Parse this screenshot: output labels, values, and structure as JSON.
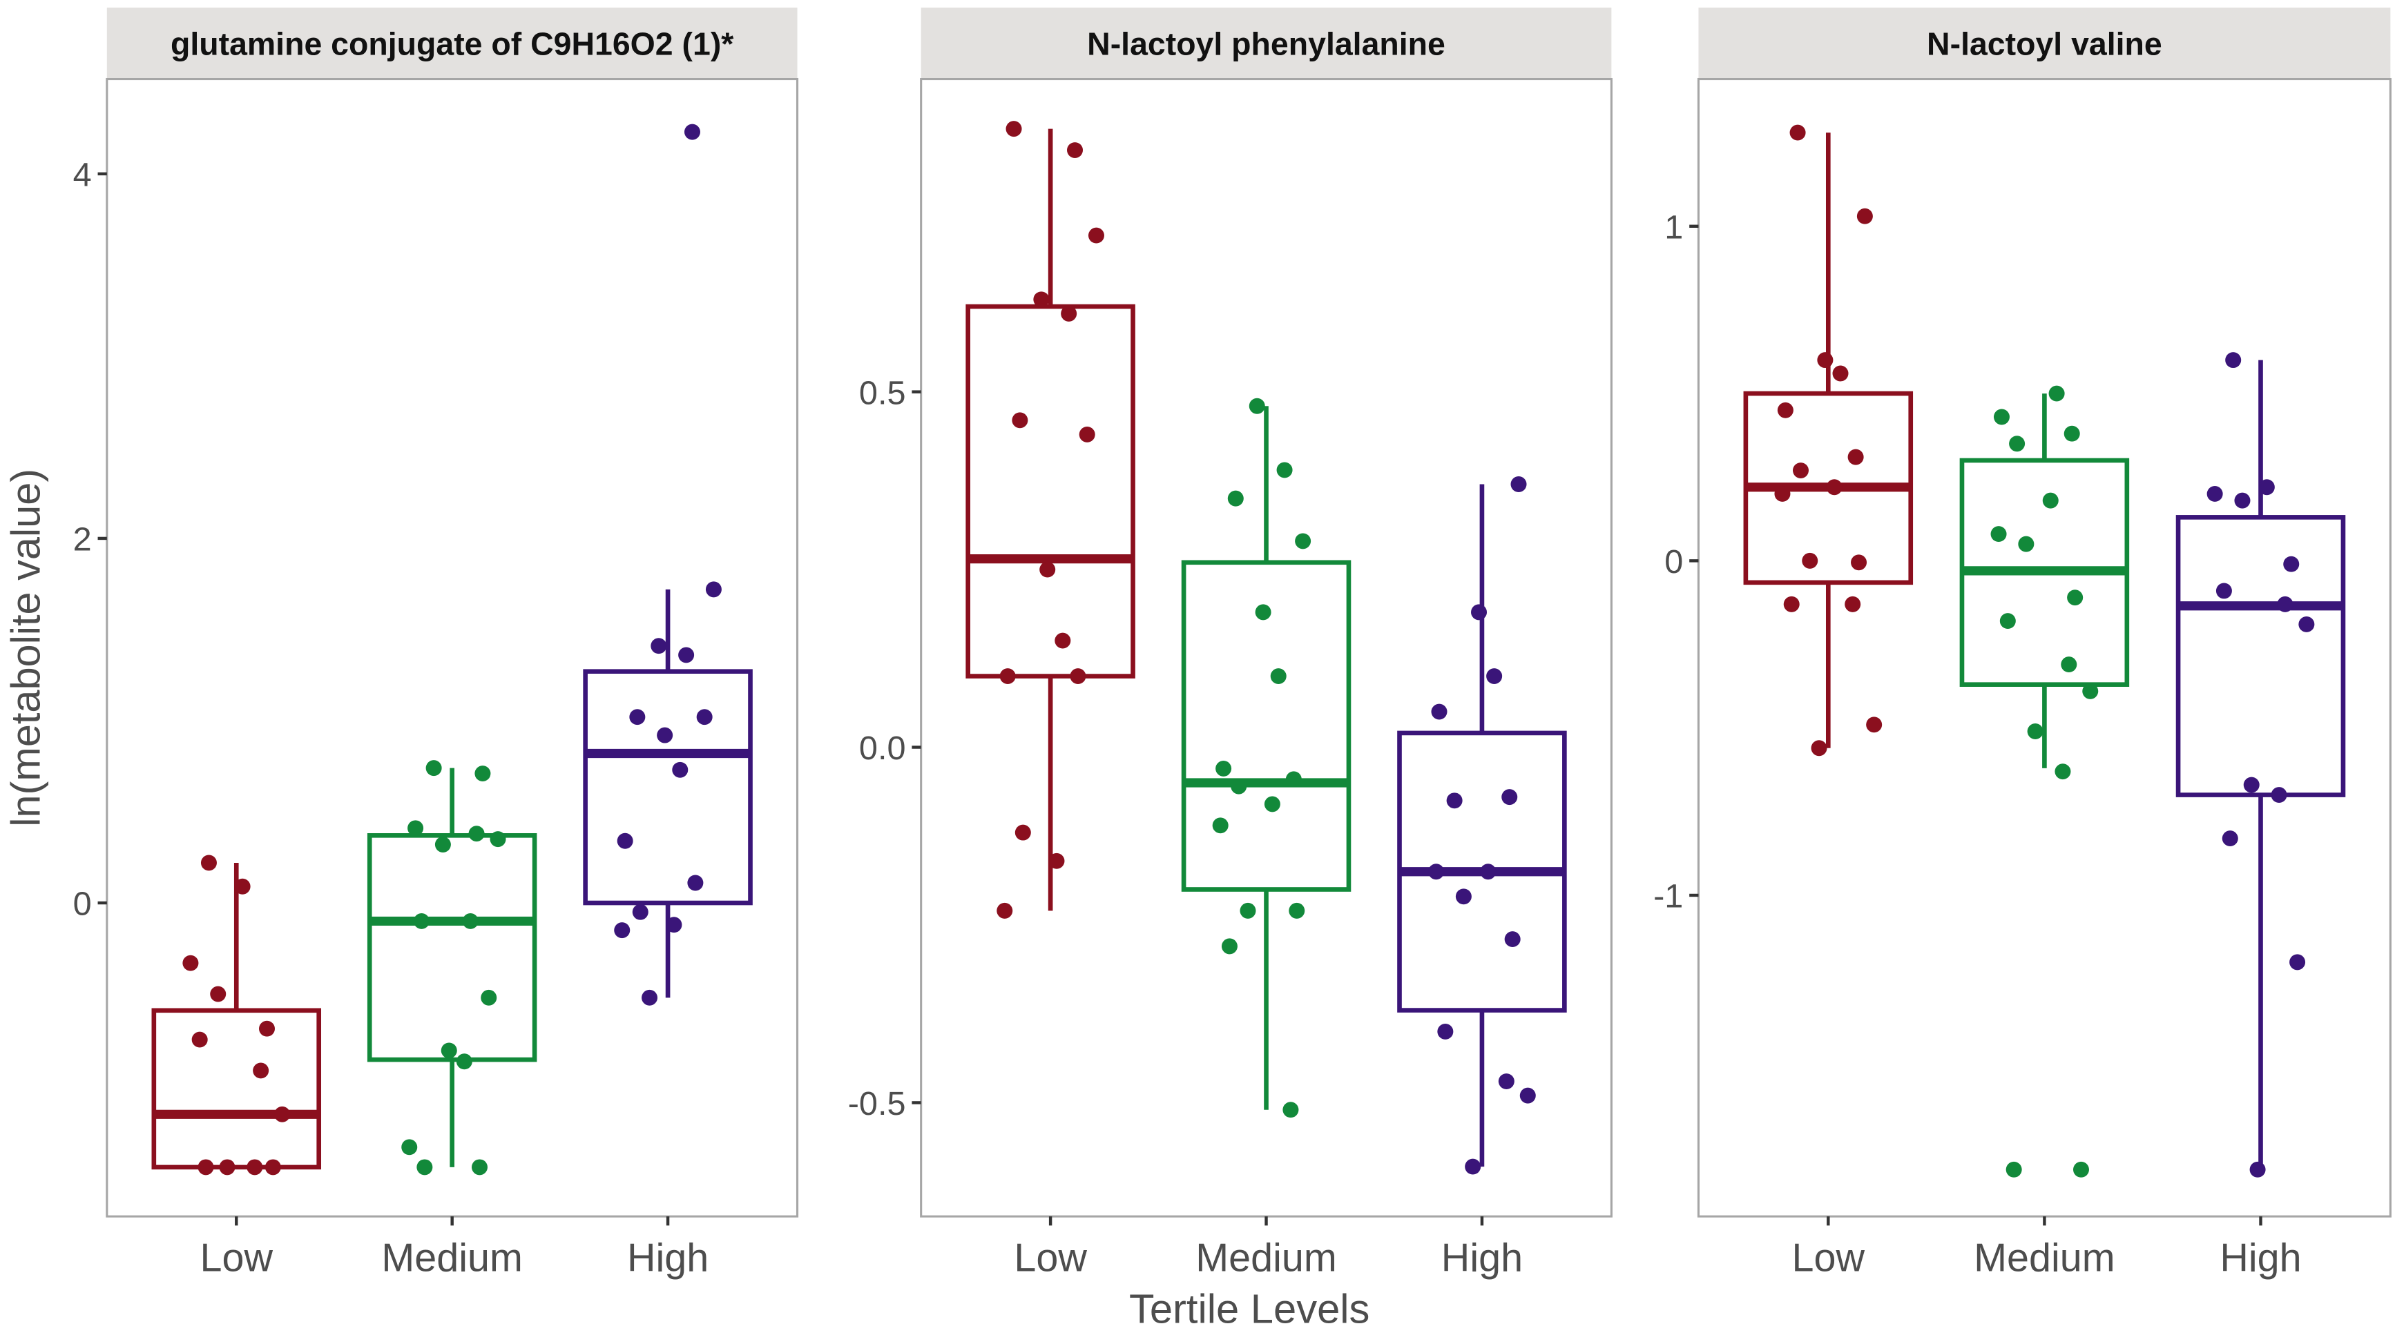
{
  "chart_data": {
    "type": "boxplot",
    "xlabel": "Tertile Levels",
    "ylabel": "ln(metabolite value)",
    "categories": [
      "Low",
      "Medium",
      "High"
    ],
    "colors": {
      "Low": "#8b0f1e",
      "Medium": "#12893a",
      "High": "#3a1579"
    },
    "grid": false,
    "legend": "none",
    "panels": [
      {
        "title": "glutamine conjugate of C9H16O2 (1)*",
        "ylim": [
          -1.72,
          4.52
        ],
        "yticks": [
          0,
          2,
          4
        ],
        "ytick_labels": [
          "0",
          "2",
          "4"
        ],
        "groups": [
          {
            "category": "Low",
            "q1": -1.45,
            "median": -1.16,
            "q3": -0.59,
            "whisker_low": -1.45,
            "whisker_high": 0.22,
            "points": [
              0.22,
              0.09,
              -0.33,
              -0.5,
              -0.69,
              -0.75,
              -0.92,
              -1.16,
              -1.45,
              -1.45,
              -1.45,
              -1.45
            ]
          },
          {
            "category": "Medium",
            "q1": -0.86,
            "median": -0.1,
            "q3": 0.37,
            "whisker_low": -1.45,
            "whisker_high": 0.74,
            "points": [
              0.74,
              0.71,
              0.41,
              0.38,
              0.35,
              0.32,
              -0.1,
              -0.1,
              -0.52,
              -0.81,
              -0.87,
              -1.34,
              -1.45,
              -1.45
            ]
          },
          {
            "category": "High",
            "q1": 0.0,
            "median": 0.82,
            "q3": 1.27,
            "whisker_low": -0.52,
            "whisker_high": 1.72,
            "points": [
              4.23,
              1.72,
              1.41,
              1.36,
              1.02,
              1.02,
              0.92,
              0.73,
              0.34,
              0.11,
              -0.05,
              -0.12,
              -0.15,
              -0.52
            ]
          }
        ]
      },
      {
        "title": "N-lactoyl phenylalanine",
        "ylim": [
          -0.66,
          0.94
        ],
        "yticks": [
          -0.5,
          0.0,
          0.5
        ],
        "ytick_labels": [
          "-0.5",
          "0.0",
          "0.5"
        ],
        "groups": [
          {
            "category": "Low",
            "q1": 0.1,
            "median": 0.265,
            "q3": 0.62,
            "whisker_low": -0.23,
            "whisker_high": 0.87,
            "points": [
              0.87,
              0.84,
              0.72,
              0.63,
              0.61,
              0.46,
              0.44,
              0.25,
              0.15,
              0.1,
              0.1,
              -0.12,
              -0.16,
              -0.23
            ]
          },
          {
            "category": "Medium",
            "q1": -0.2,
            "median": -0.05,
            "q3": 0.26,
            "whisker_low": -0.51,
            "whisker_high": 0.48,
            "points": [
              0.48,
              0.39,
              0.35,
              0.29,
              0.19,
              0.1,
              -0.03,
              -0.045,
              -0.055,
              -0.08,
              -0.11,
              -0.23,
              -0.23,
              -0.28,
              -0.51
            ]
          },
          {
            "category": "High",
            "q1": -0.37,
            "median": -0.175,
            "q3": 0.02,
            "whisker_low": -0.59,
            "whisker_high": 0.37,
            "points": [
              0.37,
              0.19,
              0.1,
              0.05,
              -0.07,
              -0.075,
              -0.175,
              -0.175,
              -0.21,
              -0.27,
              -0.4,
              -0.47,
              -0.49,
              -0.59
            ]
          }
        ]
      },
      {
        "title": "N-lactoyl valine",
        "ylim": [
          -1.96,
          1.44
        ],
        "yticks": [
          -1,
          0,
          1
        ],
        "ytick_labels": [
          "-1",
          "0",
          "1"
        ],
        "groups": [
          {
            "category": "Low",
            "q1": -0.065,
            "median": 0.22,
            "q3": 0.5,
            "whisker_low": -0.56,
            "whisker_high": 1.28,
            "points": [
              1.28,
              1.03,
              0.6,
              0.56,
              0.45,
              0.31,
              0.27,
              0.22,
              0.2,
              0.0,
              -0.005,
              -0.13,
              -0.13,
              -0.49,
              -0.56
            ]
          },
          {
            "category": "Medium",
            "q1": -0.37,
            "median": -0.03,
            "q3": 0.3,
            "whisker_low": -0.62,
            "whisker_high": 0.5,
            "points": [
              0.5,
              0.43,
              0.38,
              0.35,
              0.18,
              0.08,
              0.05,
              -0.11,
              -0.18,
              -0.31,
              -0.39,
              -0.51,
              -0.63,
              -1.82,
              -1.82
            ]
          },
          {
            "category": "High",
            "q1": -0.7,
            "median": -0.135,
            "q3": 0.13,
            "whisker_low": -1.82,
            "whisker_high": 0.6,
            "points": [
              0.6,
              0.22,
              0.2,
              0.18,
              -0.01,
              -0.09,
              -0.13,
              -0.19,
              -0.67,
              -0.7,
              -0.83,
              -1.2,
              -1.82
            ]
          }
        ]
      }
    ]
  }
}
